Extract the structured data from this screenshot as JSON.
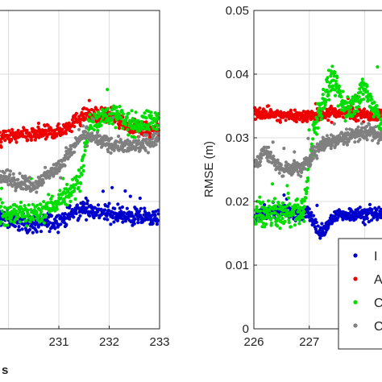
{
  "chart_data": [
    {
      "type": "scatter",
      "title": "",
      "xlabel": "",
      "ylabel": "",
      "xlim": [
        229.8,
        233
      ],
      "ylim": [
        0,
        0.05
      ],
      "xticks": [
        "231",
        "232",
        "233"
      ],
      "grid": true,
      "series": [
        {
          "color": "#0000cc",
          "band": [
            {
              "x": 229.8,
              "y": 0.0175
            },
            {
              "x": 230.5,
              "y": 0.0165
            },
            {
              "x": 231.0,
              "y": 0.017
            },
            {
              "x": 231.5,
              "y": 0.019
            },
            {
              "x": 232.0,
              "y": 0.018
            },
            {
              "x": 232.5,
              "y": 0.0175
            },
            {
              "x": 233.0,
              "y": 0.0175
            }
          ],
          "spread": 0.0012
        },
        {
          "color": "#ee0000",
          "band": [
            {
              "x": 229.8,
              "y": 0.03
            },
            {
              "x": 230.5,
              "y": 0.0305
            },
            {
              "x": 231.0,
              "y": 0.031
            },
            {
              "x": 231.5,
              "y": 0.0335
            },
            {
              "x": 232.0,
              "y": 0.0335
            },
            {
              "x": 232.5,
              "y": 0.0315
            },
            {
              "x": 233.0,
              "y": 0.031
            }
          ],
          "spread": 0.001
        },
        {
          "color": "#00dd00",
          "band": [
            {
              "x": 229.8,
              "y": 0.018
            },
            {
              "x": 230.5,
              "y": 0.018
            },
            {
              "x": 231.0,
              "y": 0.02
            },
            {
              "x": 231.4,
              "y": 0.023
            },
            {
              "x": 231.6,
              "y": 0.032
            },
            {
              "x": 232.0,
              "y": 0.034
            },
            {
              "x": 232.5,
              "y": 0.032
            },
            {
              "x": 233.0,
              "y": 0.033
            }
          ],
          "spread": 0.0015
        },
        {
          "color": "#808080",
          "band": [
            {
              "x": 229.8,
              "y": 0.024
            },
            {
              "x": 230.5,
              "y": 0.0225
            },
            {
              "x": 231.0,
              "y": 0.0255
            },
            {
              "x": 231.5,
              "y": 0.0305
            },
            {
              "x": 232.0,
              "y": 0.029
            },
            {
              "x": 232.5,
              "y": 0.0285
            },
            {
              "x": 233.0,
              "y": 0.03
            }
          ],
          "spread": 0.001
        }
      ]
    },
    {
      "type": "scatter",
      "title": "",
      "xlabel": "",
      "ylabel": "RMSE (m)",
      "xlim": [
        226,
        228.4
      ],
      "ylim": [
        0,
        0.05
      ],
      "xticks": [
        "226",
        "227"
      ],
      "yticks": [
        "0",
        "0.01",
        "0.02",
        "0.03",
        "0.04",
        "0.05"
      ],
      "grid": true,
      "legend_position": "bottom-right",
      "legend_text_visible": [
        "I",
        "A",
        "C",
        "C"
      ],
      "series": [
        {
          "color": "#0000cc",
          "band": [
            {
              "x": 226.0,
              "y": 0.018
            },
            {
              "x": 226.5,
              "y": 0.0185
            },
            {
              "x": 227.0,
              "y": 0.018
            },
            {
              "x": 227.2,
              "y": 0.015
            },
            {
              "x": 227.5,
              "y": 0.018
            },
            {
              "x": 228.0,
              "y": 0.018
            },
            {
              "x": 228.4,
              "y": 0.018
            }
          ],
          "spread": 0.0009
        },
        {
          "color": "#ee0000",
          "band": [
            {
              "x": 226.0,
              "y": 0.034
            },
            {
              "x": 226.5,
              "y": 0.0335
            },
            {
              "x": 227.0,
              "y": 0.0335
            },
            {
              "x": 227.5,
              "y": 0.034
            },
            {
              "x": 228.0,
              "y": 0.0335
            },
            {
              "x": 228.4,
              "y": 0.0335
            }
          ],
          "spread": 0.0008
        },
        {
          "color": "#00dd00",
          "band": [
            {
              "x": 226.0,
              "y": 0.018
            },
            {
              "x": 226.5,
              "y": 0.018
            },
            {
              "x": 226.9,
              "y": 0.0185
            },
            {
              "x": 227.1,
              "y": 0.032
            },
            {
              "x": 227.4,
              "y": 0.039
            },
            {
              "x": 227.7,
              "y": 0.034
            },
            {
              "x": 228.0,
              "y": 0.038
            },
            {
              "x": 228.4,
              "y": 0.03
            }
          ],
          "spread": 0.0018
        },
        {
          "color": "#808080",
          "band": [
            {
              "x": 226.0,
              "y": 0.0255
            },
            {
              "x": 226.2,
              "y": 0.028
            },
            {
              "x": 226.5,
              "y": 0.025
            },
            {
              "x": 226.9,
              "y": 0.0255
            },
            {
              "x": 227.2,
              "y": 0.029
            },
            {
              "x": 227.6,
              "y": 0.03
            },
            {
              "x": 228.0,
              "y": 0.031
            },
            {
              "x": 228.4,
              "y": 0.03
            }
          ],
          "spread": 0.001
        }
      ]
    }
  ],
  "left_bottom_label_fragment": "s"
}
